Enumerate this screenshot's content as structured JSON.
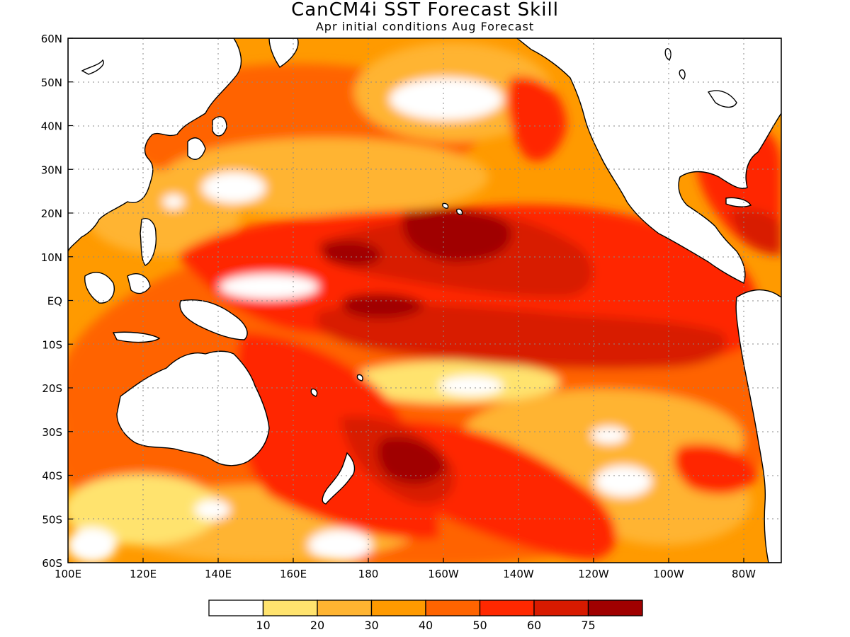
{
  "header": {
    "title": "CanCM4i SST Forecast Skill",
    "subtitle": "Apr initial conditions  Aug Forecast"
  },
  "map": {
    "lon_range": [
      100,
      290
    ],
    "lat_range": [
      -60,
      60
    ],
    "lat_ticks": [
      {
        "v": 60,
        "t": "60N"
      },
      {
        "v": 50,
        "t": "50N"
      },
      {
        "v": 40,
        "t": "40N"
      },
      {
        "v": 30,
        "t": "30N"
      },
      {
        "v": 20,
        "t": "20N"
      },
      {
        "v": 10,
        "t": "10N"
      },
      {
        "v": 0,
        "t": "EQ"
      },
      {
        "v": -10,
        "t": "10S"
      },
      {
        "v": -20,
        "t": "20S"
      },
      {
        "v": -30,
        "t": "30S"
      },
      {
        "v": -40,
        "t": "40S"
      },
      {
        "v": -50,
        "t": "50S"
      },
      {
        "v": -60,
        "t": "60S"
      }
    ],
    "lon_ticks": [
      {
        "v": 100,
        "t": "100E"
      },
      {
        "v": 120,
        "t": "120E"
      },
      {
        "v": 140,
        "t": "140E"
      },
      {
        "v": 160,
        "t": "160E"
      },
      {
        "v": 180,
        "t": "180"
      },
      {
        "v": 200,
        "t": "160W"
      },
      {
        "v": 220,
        "t": "140W"
      },
      {
        "v": 240,
        "t": "120W"
      },
      {
        "v": 260,
        "t": "100W"
      },
      {
        "v": 280,
        "t": "80W"
      }
    ],
    "grid": true
  },
  "colorbar": {
    "colors": [
      "#ffffff",
      "#ffe36e",
      "#ffb431",
      "#ff9a00",
      "#ff6400",
      "#ff2800",
      "#d81a00",
      "#a00000"
    ],
    "labels": [
      "10",
      "20",
      "30",
      "40",
      "50",
      "60",
      "75"
    ]
  }
}
